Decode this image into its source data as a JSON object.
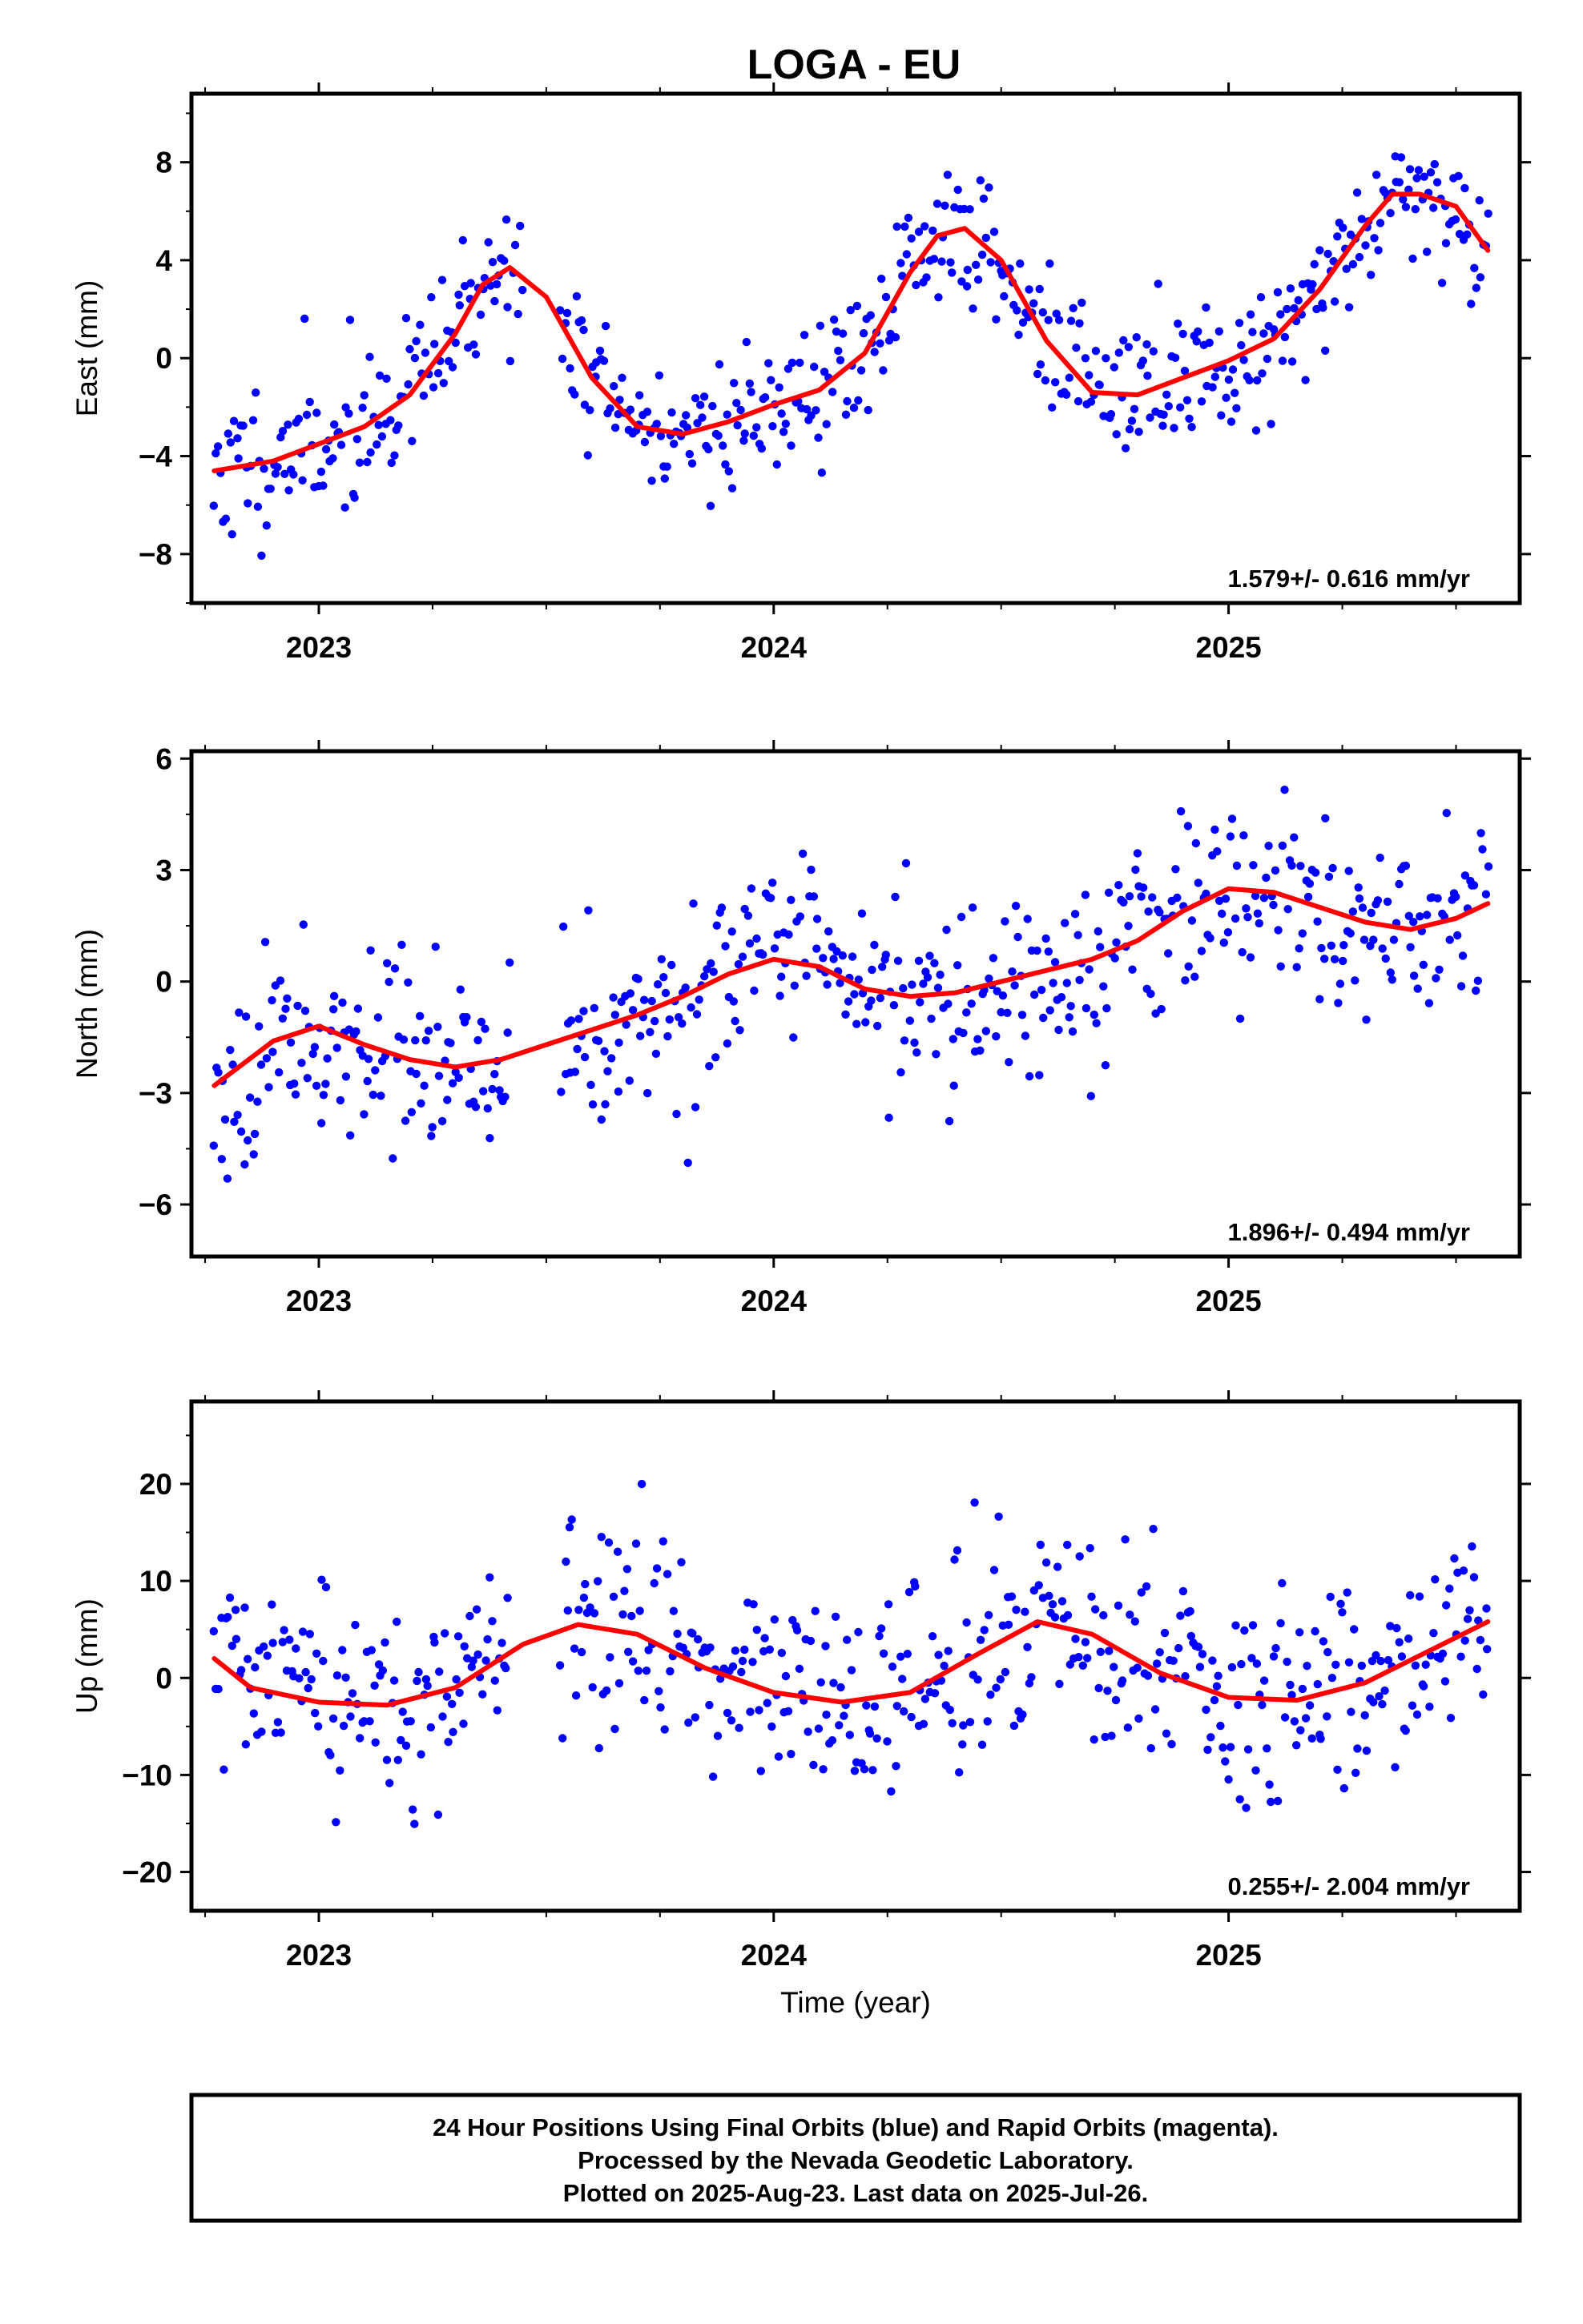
{
  "title": "LOGA - EU",
  "footer": {
    "lines": [
      "24 Hour Positions Using Final Orbits (blue) and Rapid Orbits (magenta).",
      "Processed by the Nevada Geodetic Laboratory.",
      "Plotted on 2025-Aug-23. Last data on 2025-Jul-26."
    ]
  },
  "colors": {
    "points": "#0000ff",
    "fit": "#ff0000",
    "frame": "#000000"
  },
  "chart_data": [
    {
      "type": "scatter",
      "component": "east",
      "ylabel": "East (mm)",
      "xlabel": "",
      "rate_label": "1.579+/- 0.616 mm/yr",
      "xlim": [
        2022.72,
        2025.64
      ],
      "ylim": [
        -10,
        10.8
      ],
      "yticks": [
        -8,
        -4,
        0,
        4,
        8
      ],
      "xticks": [
        2023,
        2024,
        2025
      ],
      "xtick_labels": [
        "2023",
        "2024",
        "2025"
      ],
      "grid": false,
      "fit": {
        "name": "fit",
        "x": [
          2022.77,
          2022.9,
          2023.0,
          2023.1,
          2023.2,
          2023.3,
          2023.36,
          2023.42,
          2023.5,
          2023.6,
          2023.7,
          2023.8,
          2023.9,
          2024.0,
          2024.1,
          2024.2,
          2024.3,
          2024.36,
          2024.42,
          2024.5,
          2024.6,
          2024.7,
          2024.8,
          2024.9,
          2025.0,
          2025.1,
          2025.2,
          2025.3,
          2025.36,
          2025.42,
          2025.5,
          2025.57
        ],
        "y": [
          -4.6,
          -4.2,
          -3.5,
          -2.8,
          -1.5,
          1.0,
          3.0,
          3.7,
          2.5,
          -0.8,
          -2.8,
          -3.1,
          -2.6,
          -1.9,
          -1.3,
          0.2,
          3.5,
          5.0,
          5.3,
          4.0,
          0.7,
          -1.4,
          -1.5,
          -0.8,
          -0.1,
          0.8,
          2.8,
          5.4,
          6.7,
          6.7,
          6.2,
          4.4
        ]
      },
      "scatter": {
        "x_start": 2022.77,
        "x_end": 2025.57,
        "count": 560,
        "noise": 1.5,
        "seed": 11,
        "gaps": [
          [
            2023.45,
            2023.53
          ]
        ]
      }
    },
    {
      "type": "scatter",
      "component": "north",
      "ylabel": "North (mm)",
      "xlabel": "",
      "rate_label": "1.896+/- 0.494 mm/yr",
      "xlim": [
        2022.72,
        2025.64
      ],
      "ylim": [
        -7.4,
        6.2
      ],
      "yticks": [
        -6,
        -3,
        0,
        3,
        6
      ],
      "xticks": [
        2023,
        2024,
        2025
      ],
      "xtick_labels": [
        "2023",
        "2024",
        "2025"
      ],
      "grid": false,
      "fit": {
        "name": "fit",
        "x": [
          2022.77,
          2022.9,
          2023.0,
          2023.1,
          2023.2,
          2023.3,
          2023.4,
          2023.5,
          2023.6,
          2023.7,
          2023.8,
          2023.9,
          2024.0,
          2024.1,
          2024.2,
          2024.3,
          2024.4,
          2024.5,
          2024.6,
          2024.7,
          2024.8,
          2024.9,
          2025.0,
          2025.1,
          2025.2,
          2025.3,
          2025.4,
          2025.5,
          2025.57
        ],
        "y": [
          -2.8,
          -1.6,
          -1.2,
          -1.7,
          -2.1,
          -2.3,
          -2.1,
          -1.7,
          -1.3,
          -0.9,
          -0.4,
          0.2,
          0.6,
          0.4,
          -0.2,
          -0.4,
          -0.3,
          0.0,
          0.3,
          0.6,
          1.1,
          1.9,
          2.5,
          2.4,
          2.0,
          1.6,
          1.4,
          1.7,
          2.1
        ]
      },
      "scatter": {
        "x_start": 2022.77,
        "x_end": 2025.57,
        "count": 560,
        "noise": 1.25,
        "seed": 23,
        "gaps": [
          [
            2023.42,
            2023.53
          ]
        ]
      }
    },
    {
      "type": "scatter",
      "component": "up",
      "ylabel": "Up (mm)",
      "xlabel": "Time (year)",
      "rate_label": "0.255+/- 2.004 mm/yr",
      "xlim": [
        2022.72,
        2025.64
      ],
      "ylim": [
        -24,
        28.5
      ],
      "yticks": [
        -20,
        -10,
        0,
        10,
        20
      ],
      "xticks": [
        2023,
        2024,
        2025
      ],
      "xtick_labels": [
        "2023",
        "2024",
        "2025"
      ],
      "grid": false,
      "fit": {
        "name": "fit",
        "x": [
          2022.77,
          2022.85,
          2023.0,
          2023.15,
          2023.3,
          2023.45,
          2023.57,
          2023.7,
          2023.85,
          2024.0,
          2024.15,
          2024.3,
          2024.45,
          2024.58,
          2024.7,
          2024.85,
          2025.0,
          2025.15,
          2025.3,
          2025.45,
          2025.57
        ],
        "y": [
          2.0,
          -1.0,
          -2.5,
          -2.8,
          -1.0,
          3.5,
          5.5,
          4.5,
          1.0,
          -1.5,
          -2.5,
          -1.5,
          2.5,
          5.8,
          4.5,
          0.5,
          -2.0,
          -2.3,
          -0.5,
          3.0,
          5.8
        ]
      },
      "scatter": {
        "x_start": 2022.77,
        "x_end": 2025.57,
        "count": 560,
        "noise": 5.2,
        "seed": 37,
        "gaps": [
          [
            2023.42,
            2023.53
          ]
        ]
      }
    }
  ]
}
